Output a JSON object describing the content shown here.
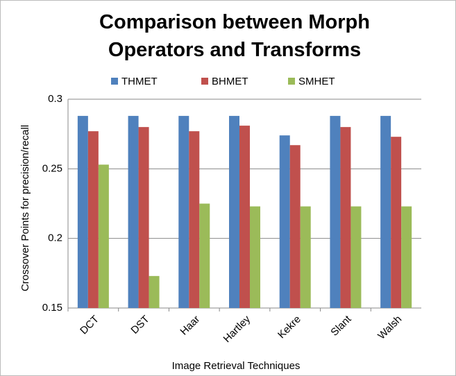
{
  "chart_data": {
    "type": "bar",
    "title": "Comparison between Morph Operators and Transforms",
    "x_label": "Image Retrieval Techniques",
    "y_label": "Crossover Points for precision/recall",
    "categories": [
      "DCT",
      "DST",
      "Haar",
      "Hartley",
      "Kekre",
      "Slant",
      "Walsh"
    ],
    "series": [
      {
        "name": "THMET",
        "color": "#4f81bd",
        "values": [
          0.288,
          0.288,
          0.288,
          0.288,
          0.274,
          0.288,
          0.288
        ]
      },
      {
        "name": "BHMET",
        "color": "#c0504d",
        "values": [
          0.277,
          0.28,
          0.277,
          0.281,
          0.267,
          0.28,
          0.273
        ]
      },
      {
        "name": "SMHET",
        "color": "#9bbb59",
        "values": [
          0.253,
          0.173,
          0.225,
          0.223,
          0.223,
          0.223,
          0.223
        ]
      }
    ],
    "ylim": [
      0.15,
      0.3
    ],
    "yticks": [
      0.15,
      0.2,
      0.25,
      0.3
    ],
    "grid": true,
    "legend": "top"
  }
}
